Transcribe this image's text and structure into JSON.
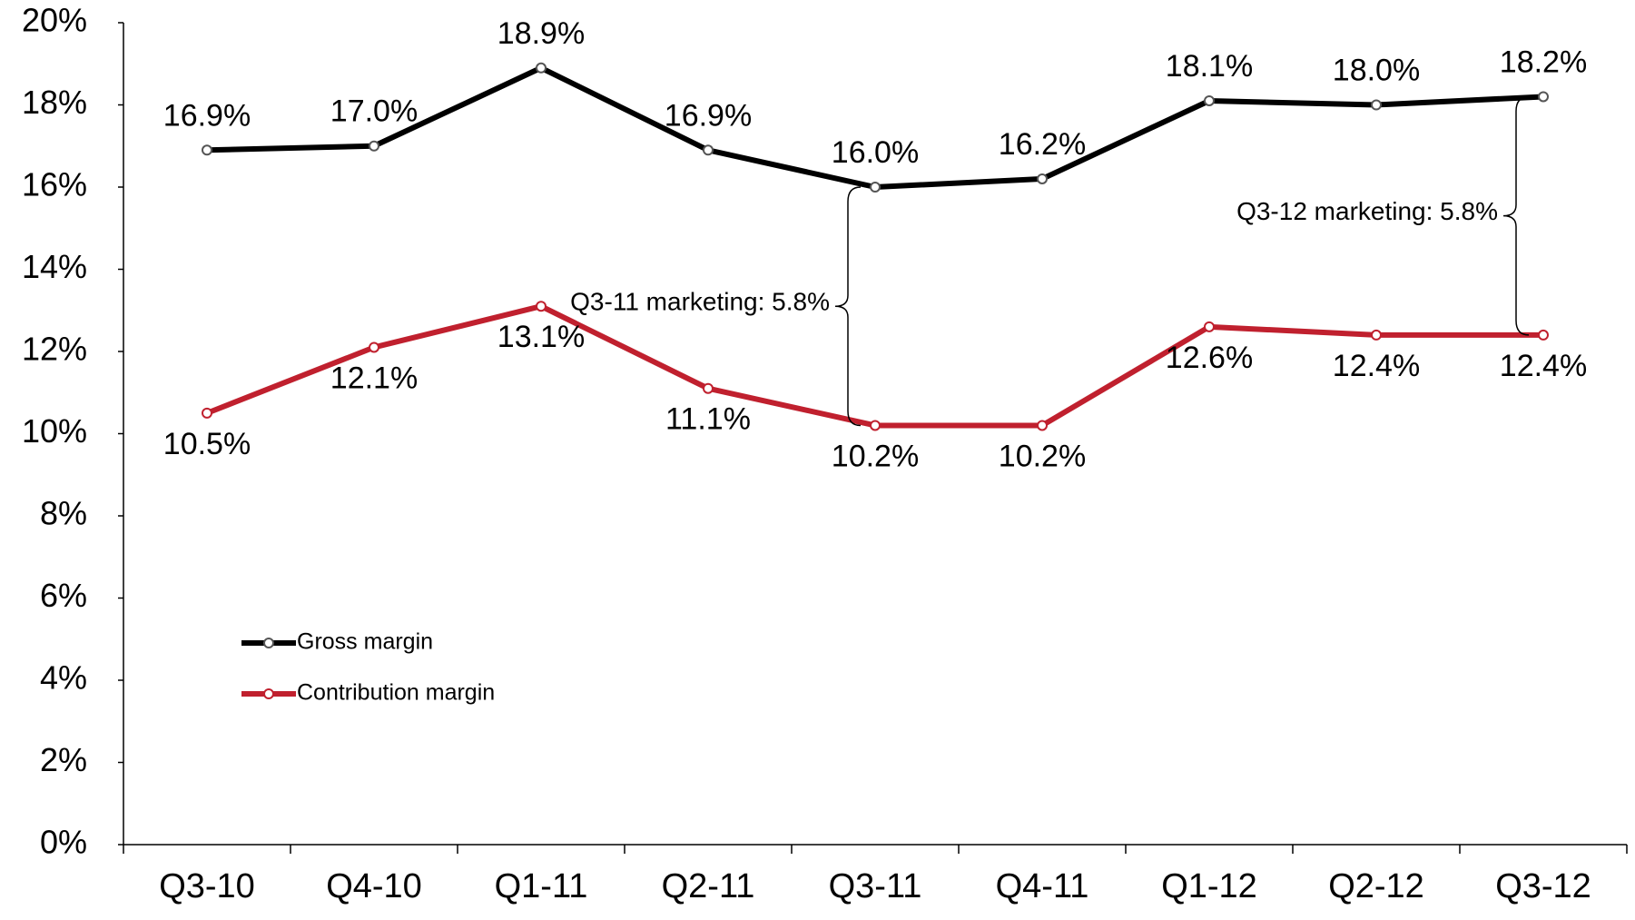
{
  "chart_data": {
    "type": "line",
    "categories": [
      "Q3-10",
      "Q4-10",
      "Q1-11",
      "Q2-11",
      "Q3-11",
      "Q4-11",
      "Q1-12",
      "Q2-12",
      "Q3-12"
    ],
    "series": [
      {
        "name": "Gross margin",
        "color": "#000000",
        "values": [
          16.9,
          17.0,
          18.9,
          16.9,
          16.0,
          16.2,
          18.1,
          18.0,
          18.2
        ],
        "value_labels": [
          "16.9%",
          "17.0%",
          "18.9%",
          "16.9%",
          "16.0%",
          "16.2%",
          "18.1%",
          "18.0%",
          "18.2%"
        ]
      },
      {
        "name": "Contribution margin",
        "color": "#c0202e",
        "values": [
          10.5,
          12.1,
          13.1,
          11.1,
          10.2,
          10.2,
          12.6,
          12.4,
          12.4
        ],
        "value_labels": [
          "10.5%",
          "12.1%",
          "13.1%",
          "11.1%",
          "10.2%",
          "10.2%",
          "12.6%",
          "12.4%",
          "12.4%"
        ]
      }
    ],
    "annotations": [
      "Q3-11 marketing:  5.8%",
      "Q3-12 marketing:  5.8%"
    ],
    "ylim": [
      0,
      20
    ],
    "yticks": [
      {
        "value": 0,
        "label": "0%"
      },
      {
        "value": 2,
        "label": "2%"
      },
      {
        "value": 4,
        "label": "4%"
      },
      {
        "value": 6,
        "label": "6%"
      },
      {
        "value": 8,
        "label": "8%"
      },
      {
        "value": 10,
        "label": "10%"
      },
      {
        "value": 12,
        "label": "12%"
      },
      {
        "value": 14,
        "label": "14%"
      },
      {
        "value": 16,
        "label": "16%"
      },
      {
        "value": 18,
        "label": "18%"
      },
      {
        "value": 20,
        "label": "20%"
      }
    ],
    "legend": "lower-left",
    "grid": false
  }
}
